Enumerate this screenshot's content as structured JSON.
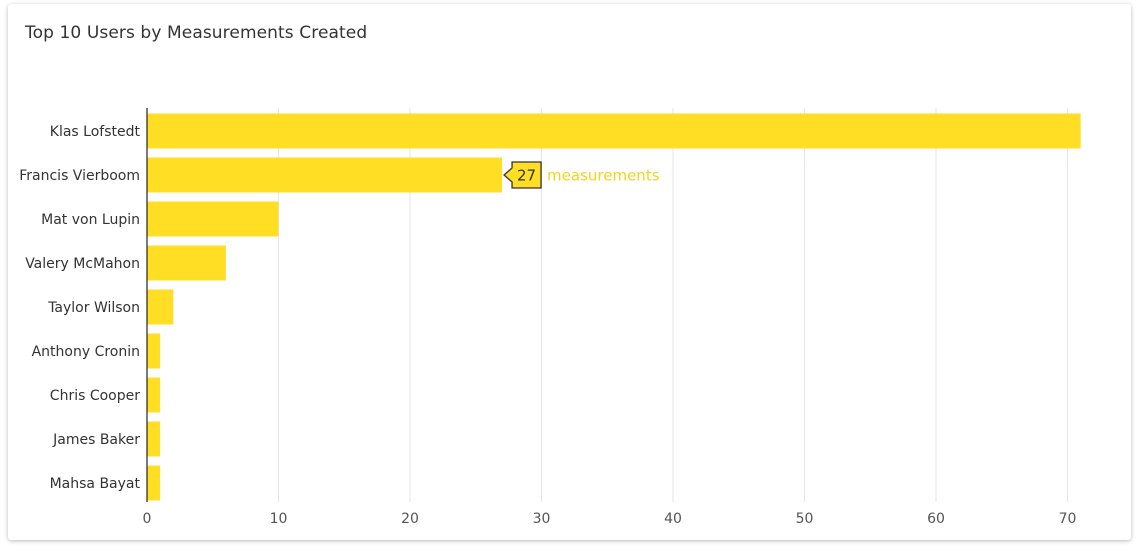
{
  "colors": {
    "bar": "#FFDE24",
    "gridline": "#E6E6E6",
    "axis": "#222222",
    "tooltip_border": "#333333",
    "tooltip_unit": "#F5D21E"
  },
  "chart_data": {
    "type": "bar",
    "orientation": "horizontal",
    "title": "Top 10 Users by Measurements Created",
    "xlabel": "",
    "ylabel": "",
    "xlim": [
      0,
      74
    ],
    "xticks": [
      0,
      10,
      20,
      30,
      40,
      50,
      60,
      70
    ],
    "grid": "vertical",
    "categories": [
      "Klas Lofstedt",
      "Francis Vierboom",
      "Mat von Lupin",
      "Valery McMahon",
      "Taylor Wilson",
      "Anthony Cronin",
      "Chris Cooper",
      "James Baker",
      "Mahsa Bayat"
    ],
    "values": [
      71,
      27,
      10,
      6,
      2,
      1,
      1,
      1,
      1
    ],
    "tooltip": {
      "category": "Francis Vierboom",
      "value_label": "27",
      "unit_label": "measurements"
    }
  }
}
